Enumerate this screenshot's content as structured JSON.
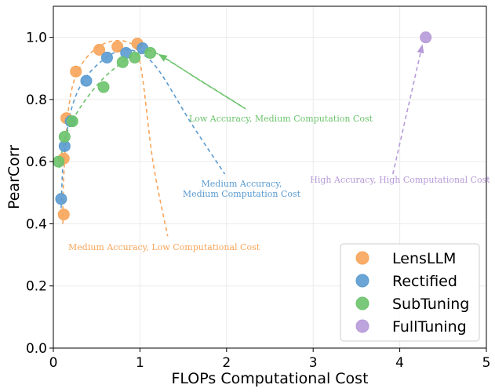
{
  "chart_data": {
    "type": "scatter",
    "xlabel": "FLOPs Computational Cost",
    "ylabel": "PearCorr",
    "xlim": [
      0,
      5
    ],
    "ylim": [
      0,
      1.1
    ],
    "x_ticks": [
      0,
      1,
      2,
      3,
      4,
      5
    ],
    "y_ticks": [
      0.0,
      0.2,
      0.4,
      0.6,
      0.8,
      1.0
    ],
    "x_tick_labels": [
      "0",
      "1",
      "2",
      "3",
      "4",
      "5"
    ],
    "y_tick_labels": [
      "0.0",
      "0.2",
      "0.4",
      "0.6",
      "0.8",
      "1.0"
    ],
    "grid": true,
    "legend_position": "bottom-right",
    "series": [
      {
        "name": "LensLLM",
        "color": "#f7a55a",
        "points": [
          [
            0.12,
            0.43
          ],
          [
            0.12,
            0.61
          ],
          [
            0.15,
            0.74
          ],
          [
            0.26,
            0.89
          ],
          [
            0.53,
            0.96
          ],
          [
            0.74,
            0.97
          ],
          [
            0.97,
            0.98
          ]
        ],
        "trend": [
          [
            0.11,
            0.4
          ],
          [
            0.12,
            0.55
          ],
          [
            0.18,
            0.78
          ],
          [
            0.3,
            0.9
          ],
          [
            0.55,
            0.975
          ],
          [
            0.85,
            0.985
          ],
          [
            1.0,
            0.92
          ],
          [
            1.15,
            0.6
          ],
          [
            1.32,
            0.36
          ]
        ]
      },
      {
        "name": "Rectified",
        "color": "#5b9bd0",
        "points": [
          [
            0.09,
            0.48
          ],
          [
            0.13,
            0.65
          ],
          [
            0.2,
            0.73
          ],
          [
            0.38,
            0.86
          ],
          [
            0.62,
            0.935
          ],
          [
            0.84,
            0.95
          ],
          [
            1.03,
            0.965
          ]
        ],
        "trend": [
          [
            0.09,
            0.45
          ],
          [
            0.12,
            0.62
          ],
          [
            0.22,
            0.78
          ],
          [
            0.4,
            0.88
          ],
          [
            0.7,
            0.95
          ],
          [
            0.95,
            0.955
          ],
          [
            1.2,
            0.9
          ],
          [
            1.6,
            0.72
          ],
          [
            1.98,
            0.56
          ]
        ]
      },
      {
        "name": "SubTuning",
        "color": "#6cc36c",
        "points": [
          [
            0.06,
            0.6
          ],
          [
            0.13,
            0.68
          ],
          [
            0.22,
            0.73
          ],
          [
            0.58,
            0.84
          ],
          [
            0.8,
            0.92
          ],
          [
            0.94,
            0.935
          ],
          [
            1.12,
            0.95
          ]
        ],
        "trend": [
          [
            0.07,
            0.58
          ],
          [
            0.14,
            0.68
          ],
          [
            0.3,
            0.77
          ],
          [
            0.55,
            0.86
          ],
          [
            0.8,
            0.92
          ],
          [
            1.0,
            0.95
          ],
          [
            1.18,
            0.95
          ],
          [
            1.7,
            0.86
          ],
          [
            2.22,
            0.77
          ]
        ]
      },
      {
        "name": "FullTuning",
        "color": "#b69ad8",
        "points": [
          [
            4.3,
            1.0
          ]
        ],
        "trend": [
          [
            3.92,
            0.56
          ],
          [
            4.26,
            0.975
          ]
        ]
      }
    ],
    "annotations": [
      {
        "series": "LensLLM",
        "lines": [
          "Medium Accuracy, Low Computational Cost"
        ]
      },
      {
        "series": "Rectified",
        "lines": [
          "Medium Accuracy,",
          "Medium Computation Cost"
        ]
      },
      {
        "series": "SubTuning",
        "lines": [
          "Low Accuracy, Medium Computation Cost"
        ]
      },
      {
        "series": "FullTuning",
        "lines": [
          "High Accuracy, High Computational Cost"
        ]
      }
    ]
  }
}
